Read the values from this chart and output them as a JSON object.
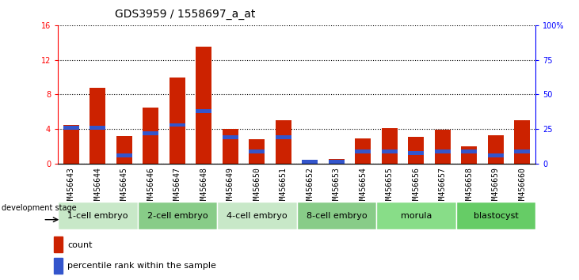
{
  "title": "GDS3959 / 1558697_a_at",
  "samples": [
    "GSM456643",
    "GSM456644",
    "GSM456645",
    "GSM456646",
    "GSM456647",
    "GSM456648",
    "GSM456649",
    "GSM456650",
    "GSM456651",
    "GSM456652",
    "GSM456653",
    "GSM456654",
    "GSM456655",
    "GSM456656",
    "GSM456657",
    "GSM456658",
    "GSM456659",
    "GSM456660"
  ],
  "count_values": [
    4.5,
    8.8,
    3.2,
    6.5,
    10.0,
    13.5,
    4.0,
    2.8,
    5.0,
    0.5,
    0.6,
    2.9,
    4.1,
    3.1,
    3.9,
    2.0,
    3.3,
    5.0
  ],
  "percentile_values": [
    26,
    26,
    6,
    22,
    28,
    38,
    19,
    9,
    19,
    1,
    1,
    9,
    9,
    8,
    9,
    9,
    6,
    9
  ],
  "stage_groups": [
    {
      "label": "1-cell embryo",
      "start": 0,
      "end": 3
    },
    {
      "label": "2-cell embryo",
      "start": 3,
      "end": 6
    },
    {
      "label": "4-cell embryo",
      "start": 6,
      "end": 9
    },
    {
      "label": "8-cell embryo",
      "start": 9,
      "end": 12
    },
    {
      "label": "morula",
      "start": 12,
      "end": 15
    },
    {
      "label": "blastocyst",
      "start": 15,
      "end": 18
    }
  ],
  "stage_colors": [
    "#c8e8c8",
    "#88cc88",
    "#c8e8c8",
    "#88cc88",
    "#88dd88",
    "#66cc66"
  ],
  "ylim_left": [
    0,
    16
  ],
  "ylim_right": [
    0,
    100
  ],
  "yticks_left": [
    0,
    4,
    8,
    12,
    16
  ],
  "yticks_right": [
    0,
    25,
    50,
    75,
    100
  ],
  "ytick_labels_right": [
    "0",
    "25",
    "50",
    "75",
    "100%"
  ],
  "bar_color_red": "#cc2200",
  "bar_color_blue": "#3355cc",
  "xticklabel_bg": "#cccccc",
  "title_fontsize": 10,
  "tick_fontsize": 7,
  "stage_label_fontsize": 8,
  "development_stage_label": "development stage"
}
